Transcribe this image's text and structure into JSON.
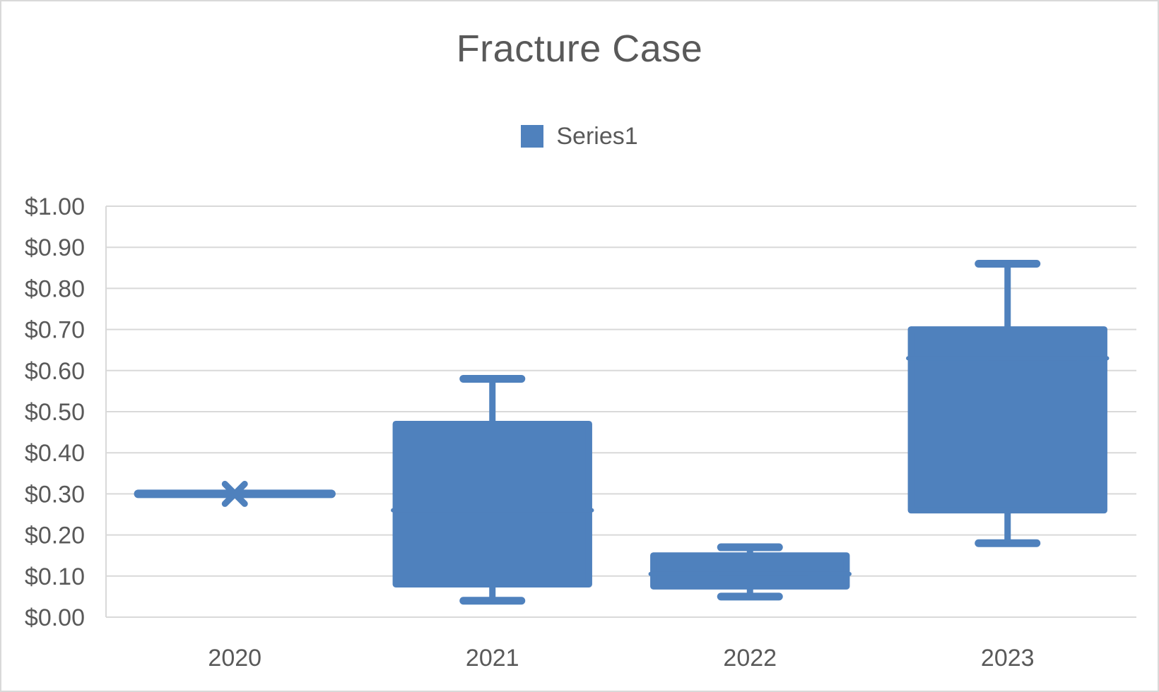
{
  "colors": {
    "series": "#4f81bd",
    "grid": "#d9d9d9",
    "text": "#595959",
    "frame": "#d9d9d9"
  },
  "chart_data": {
    "type": "box",
    "title": "Fracture Case",
    "xlabel": "",
    "ylabel": "",
    "legend": {
      "position": "top",
      "entries": [
        "Series1"
      ]
    },
    "grid": true,
    "ylim": [
      0,
      1.0
    ],
    "yticks": [
      0,
      0.1,
      0.2,
      0.3,
      0.4,
      0.5,
      0.6,
      0.7,
      0.8,
      0.9,
      1.0
    ],
    "ytick_labels": [
      "$0.00",
      "$0.10",
      "$0.20",
      "$0.30",
      "$0.40",
      "$0.50",
      "$0.60",
      "$0.70",
      "$0.80",
      "$0.90",
      "$1.00"
    ],
    "categories": [
      "2020",
      "2021",
      "2022",
      "2023"
    ],
    "series": [
      {
        "name": "Series1",
        "boxes": [
          {
            "category": "2020",
            "min": 0.3,
            "q1": 0.3,
            "median": 0.3,
            "q3": 0.3,
            "max": 0.3,
            "mean": 0.3
          },
          {
            "category": "2021",
            "min": 0.04,
            "q1": 0.08,
            "median": 0.26,
            "q3": 0.47,
            "max": 0.58
          },
          {
            "category": "2022",
            "min": 0.05,
            "q1": 0.075,
            "median": 0.105,
            "q3": 0.15,
            "max": 0.17
          },
          {
            "category": "2023",
            "min": 0.18,
            "q1": 0.26,
            "median": 0.63,
            "q3": 0.7,
            "max": 0.86
          }
        ]
      }
    ]
  }
}
